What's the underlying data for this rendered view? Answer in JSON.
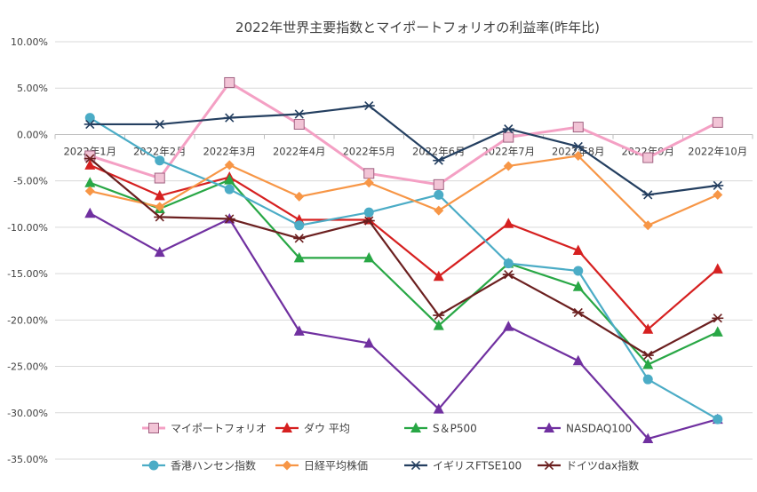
{
  "chart_data": {
    "type": "line",
    "title": "2022年世界主要指数とマイポートフォリオの利益率(昨年比)",
    "xlabel": "",
    "ylabel": "",
    "categories": [
      "2022年1月",
      "2022年2月",
      "2022年3月",
      "2022年4月",
      "2022年5月",
      "2022年6月",
      "2022年7月",
      "2022年8月",
      "2022年9月",
      "2022年10月"
    ],
    "ylim": [
      -35,
      10
    ],
    "yticks": [
      10,
      5,
      0,
      -5,
      -10,
      -15,
      -20,
      -25,
      -30,
      -35
    ],
    "ytick_labels": [
      "10.00%",
      "5.00%",
      "0.00%",
      "-5.00%",
      "-10.00%",
      "-15.00%",
      "-20.00%",
      "-25.00%",
      "-30.00%",
      "-35.00%"
    ],
    "grid": true,
    "legend_position": "bottom",
    "series": [
      {
        "name": "マイポートフォリオ",
        "color": "#f4a0c4",
        "marker": "square",
        "values": [
          -2.3,
          -4.7,
          5.6,
          1.1,
          -4.2,
          -5.4,
          -0.3,
          0.8,
          -2.5,
          1.3
        ]
      },
      {
        "name": "ダウ 平均",
        "color": "#d62020",
        "marker": "triangle",
        "values": [
          -3.3,
          -6.6,
          -4.6,
          -9.2,
          -9.2,
          -15.3,
          -9.6,
          -12.5,
          -21.0,
          -14.5
        ]
      },
      {
        "name": "S＆P500",
        "color": "#28a745",
        "marker": "triangle",
        "values": [
          -5.2,
          -8.0,
          -4.9,
          -13.3,
          -13.3,
          -20.6,
          -13.9,
          -16.4,
          -24.8,
          -21.3
        ]
      },
      {
        "name": "NASDAQ100",
        "color": "#7030a0",
        "marker": "triangle",
        "values": [
          -8.5,
          -12.7,
          -9.1,
          -21.2,
          -22.5,
          -29.6,
          -20.7,
          -24.4,
          -32.8,
          -30.7
        ]
      },
      {
        "name": "香港ハンセン指数",
        "color": "#4bacc6",
        "marker": "circle",
        "values": [
          1.8,
          -2.8,
          -5.9,
          -9.8,
          -8.4,
          -6.5,
          -13.9,
          -14.7,
          -26.4,
          -30.7
        ]
      },
      {
        "name": "日経平均株価",
        "color": "#f79646",
        "marker": "diamond",
        "values": [
          -6.1,
          -7.8,
          -3.3,
          -6.7,
          -5.2,
          -8.2,
          -3.4,
          -2.3,
          -9.8,
          -6.5
        ]
      },
      {
        "name": "イギリスFTSE100",
        "color": "#243f60",
        "marker": "star",
        "values": [
          1.1,
          1.1,
          1.8,
          2.2,
          3.1,
          -2.8,
          0.6,
          -1.3,
          -6.5,
          -5.5
        ]
      },
      {
        "name": "ドイツdax指数",
        "color": "#6b1f1f",
        "marker": "star",
        "values": [
          -2.6,
          -8.9,
          -9.1,
          -11.2,
          -9.3,
          -19.5,
          -15.1,
          -19.2,
          -23.8,
          -19.8
        ]
      }
    ]
  }
}
